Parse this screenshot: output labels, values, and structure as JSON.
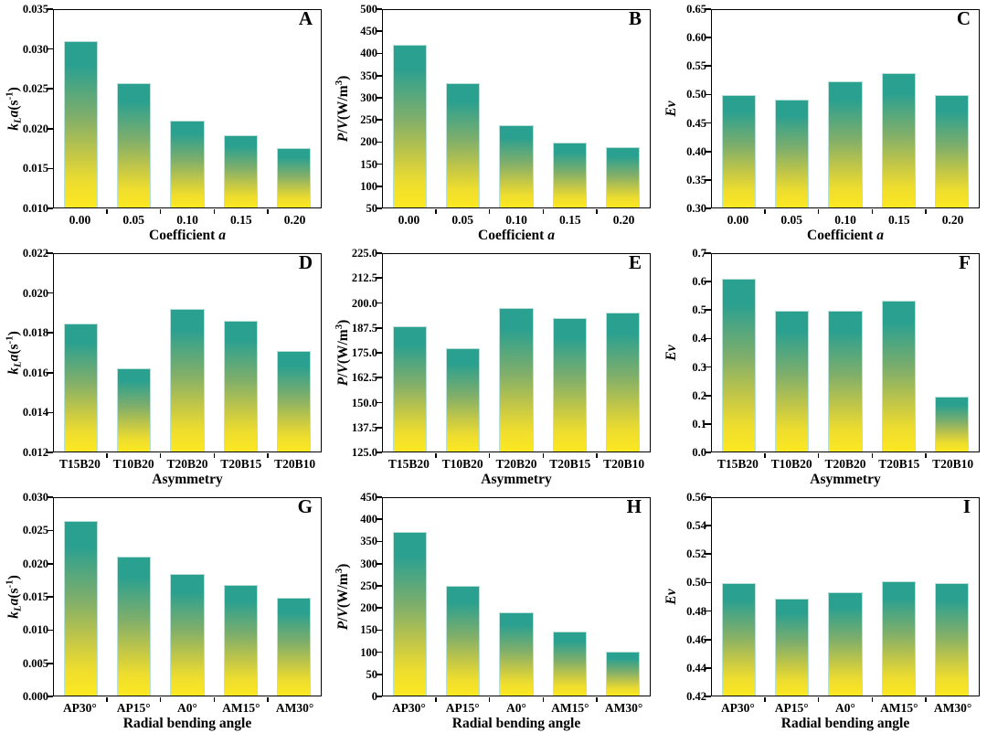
{
  "colors": {
    "background": "#ffffff",
    "axis": "#000000",
    "bar_top": "#2aa090",
    "bar_bottom": "#fce821",
    "bar_border": "#b9ded6"
  },
  "chart_data": [
    {
      "type": "bar",
      "panel_label": "A",
      "ylabel": "kLa(s-1)",
      "ylabel_parts": [
        {
          "t": "k",
          "style": "italic"
        },
        {
          "t": "L",
          "style": "italic sub"
        },
        {
          "t": "a",
          "style": "italic"
        },
        {
          "t": "(s"
        },
        {
          "t": "-1",
          "style": "sup"
        },
        {
          "t": ")"
        }
      ],
      "xlabel": "Coefficient a",
      "xlabel_parts": [
        {
          "t": "Coefficient "
        },
        {
          "t": "a",
          "style": "italic"
        }
      ],
      "categories": [
        "0.00",
        "0.05",
        "0.10",
        "0.15",
        "0.20"
      ],
      "values": [
        0.0311,
        0.0257,
        0.021,
        0.0191,
        0.0175
      ],
      "ylim": [
        0.01,
        0.035
      ],
      "yticks": [
        "0.010",
        "0.015",
        "0.020",
        "0.025",
        "0.030",
        "0.035"
      ],
      "grid": false,
      "legend": null
    },
    {
      "type": "bar",
      "panel_label": "B",
      "ylabel": "P/V(W/m3)",
      "ylabel_parts": [
        {
          "t": "P",
          "style": "italic"
        },
        {
          "t": "/"
        },
        {
          "t": "V",
          "style": "italic"
        },
        {
          "t": "(W/m"
        },
        {
          "t": "3",
          "style": "sup"
        },
        {
          "t": ")"
        }
      ],
      "xlabel": "Coefficient a",
      "xlabel_parts": [
        {
          "t": "Coefficient "
        },
        {
          "t": "a",
          "style": "italic"
        }
      ],
      "categories": [
        "0.00",
        "0.05",
        "0.10",
        "0.15",
        "0.20"
      ],
      "values": [
        421,
        333,
        237,
        197,
        188
      ],
      "ylim": [
        50,
        500
      ],
      "yticks": [
        "50",
        "100",
        "150",
        "200",
        "250",
        "300",
        "350",
        "400",
        "450",
        "500"
      ],
      "grid": false,
      "legend": null
    },
    {
      "type": "bar",
      "panel_label": "C",
      "ylabel": "Ev",
      "ylabel_parts": [
        {
          "t": "Ev",
          "style": "italic"
        }
      ],
      "xlabel": "Coefficient a",
      "xlabel_parts": [
        {
          "t": "Coefficient "
        },
        {
          "t": "a",
          "style": "italic"
        }
      ],
      "categories": [
        "0.00",
        "0.05",
        "0.10",
        "0.15",
        "0.20"
      ],
      "values": [
        0.5,
        0.492,
        0.524,
        0.539,
        0.5
      ],
      "ylim": [
        0.3,
        0.65
      ],
      "yticks": [
        "0.30",
        "0.35",
        "0.40",
        "0.45",
        "0.50",
        "0.55",
        "0.60",
        "0.65"
      ],
      "grid": false,
      "legend": null
    },
    {
      "type": "bar",
      "panel_label": "D",
      "ylabel": "kLa(s-1)",
      "ylabel_parts": [
        {
          "t": "k",
          "style": "italic"
        },
        {
          "t": "L",
          "style": "italic sub"
        },
        {
          "t": "a",
          "style": "italic"
        },
        {
          "t": "(s"
        },
        {
          "t": "-1",
          "style": "sup"
        },
        {
          "t": ")"
        }
      ],
      "xlabel": "Asymmetry",
      "xlabel_parts": [
        {
          "t": "Asymmetry"
        }
      ],
      "categories": [
        "T15B20",
        "T10B20",
        "T20B20",
        "T20B15",
        "T20B10"
      ],
      "values": [
        0.0185,
        0.0162,
        0.0192,
        0.0186,
        0.0171
      ],
      "ylim": [
        0.012,
        0.022
      ],
      "yticks": [
        "0.012",
        "0.014",
        "0.016",
        "0.018",
        "0.020",
        "0.022"
      ],
      "grid": false,
      "legend": null
    },
    {
      "type": "bar",
      "panel_label": "E",
      "ylabel": "P/V(W/m3)",
      "ylabel_parts": [
        {
          "t": "P",
          "style": "italic"
        },
        {
          "t": "/"
        },
        {
          "t": "V",
          "style": "italic"
        },
        {
          "t": "(W/m"
        },
        {
          "t": "3",
          "style": "sup"
        },
        {
          "t": ")"
        }
      ],
      "xlabel": "Asymmetry",
      "xlabel_parts": [
        {
          "t": "Asymmetry"
        }
      ],
      "categories": [
        "T15B20",
        "T10B20",
        "T20B20",
        "T20B15",
        "T20B10"
      ],
      "values": [
        188.5,
        177.5,
        197.5,
        192.5,
        195.5
      ],
      "ylim": [
        125.0,
        225.0
      ],
      "yticks": [
        "125.0",
        "137.5",
        "150.0",
        "162.5",
        "175.0",
        "187.5",
        "200.0",
        "212.5",
        "225.0"
      ],
      "grid": false,
      "legend": null
    },
    {
      "type": "bar",
      "panel_label": "F",
      "ylabel": "Ev",
      "ylabel_parts": [
        {
          "t": "Ev",
          "style": "italic"
        }
      ],
      "xlabel": "Asymmetry",
      "xlabel_parts": [
        {
          "t": "Asymmetry"
        }
      ],
      "categories": [
        "T15B20",
        "T10B20",
        "T20B20",
        "T20B15",
        "T20B10"
      ],
      "values": [
        0.612,
        0.5,
        0.5,
        0.535,
        0.195
      ],
      "ylim": [
        0.0,
        0.7
      ],
      "yticks": [
        "0.0",
        "0.1",
        "0.2",
        "0.3",
        "0.4",
        "0.5",
        "0.6",
        "0.7"
      ],
      "grid": false,
      "legend": null
    },
    {
      "type": "bar",
      "panel_label": "G",
      "ylabel": "kLa(s-1)",
      "ylabel_parts": [
        {
          "t": "k",
          "style": "italic"
        },
        {
          "t": "L",
          "style": "italic sub"
        },
        {
          "t": "a",
          "style": "italic"
        },
        {
          "t": "(s"
        },
        {
          "t": "-1",
          "style": "sup"
        },
        {
          "t": ")"
        }
      ],
      "xlabel": "Radial bending angle",
      "xlabel_parts": [
        {
          "t": "Radial bending angle"
        }
      ],
      "categories": [
        "AP30°",
        "AP15°",
        "A0°",
        "AM15°",
        "AM30°"
      ],
      "values": [
        0.0265,
        0.0211,
        0.0185,
        0.0168,
        0.0149
      ],
      "ylim": [
        0.0,
        0.03
      ],
      "yticks": [
        "0.000",
        "0.005",
        "0.010",
        "0.015",
        "0.020",
        "0.025",
        "0.030"
      ],
      "grid": false,
      "legend": null
    },
    {
      "type": "bar",
      "panel_label": "H",
      "ylabel": "P/V(W/m3)",
      "ylabel_parts": [
        {
          "t": "P",
          "style": "italic"
        },
        {
          "t": "/"
        },
        {
          "t": "V",
          "style": "italic"
        },
        {
          "t": "(W/m"
        },
        {
          "t": "3",
          "style": "sup"
        },
        {
          "t": ")"
        }
      ],
      "xlabel": "Radial bending angle",
      "xlabel_parts": [
        {
          "t": "Radial bending angle"
        }
      ],
      "categories": [
        "AP30°",
        "AP15°",
        "A0°",
        "AM15°",
        "AM30°"
      ],
      "values": [
        372,
        250,
        189,
        145,
        99
      ],
      "ylim": [
        0,
        450
      ],
      "yticks": [
        "0",
        "50",
        "100",
        "150",
        "200",
        "250",
        "300",
        "350",
        "400",
        "450"
      ],
      "grid": false,
      "legend": null
    },
    {
      "type": "bar",
      "panel_label": "I",
      "ylabel": "Ev",
      "ylabel_parts": [
        {
          "t": "Ev",
          "style": "italic"
        }
      ],
      "xlabel": "Radial bending angle",
      "xlabel_parts": [
        {
          "t": "Radial bending angle"
        }
      ],
      "categories": [
        "AP30°",
        "AP15°",
        "A0°",
        "AM15°",
        "AM30°"
      ],
      "values": [
        0.5,
        0.489,
        0.493,
        0.501,
        0.5
      ],
      "ylim": [
        0.42,
        0.56
      ],
      "yticks": [
        "0.42",
        "0.44",
        "0.46",
        "0.48",
        "0.50",
        "0.52",
        "0.54",
        "0.56"
      ],
      "grid": false,
      "legend": null
    }
  ]
}
